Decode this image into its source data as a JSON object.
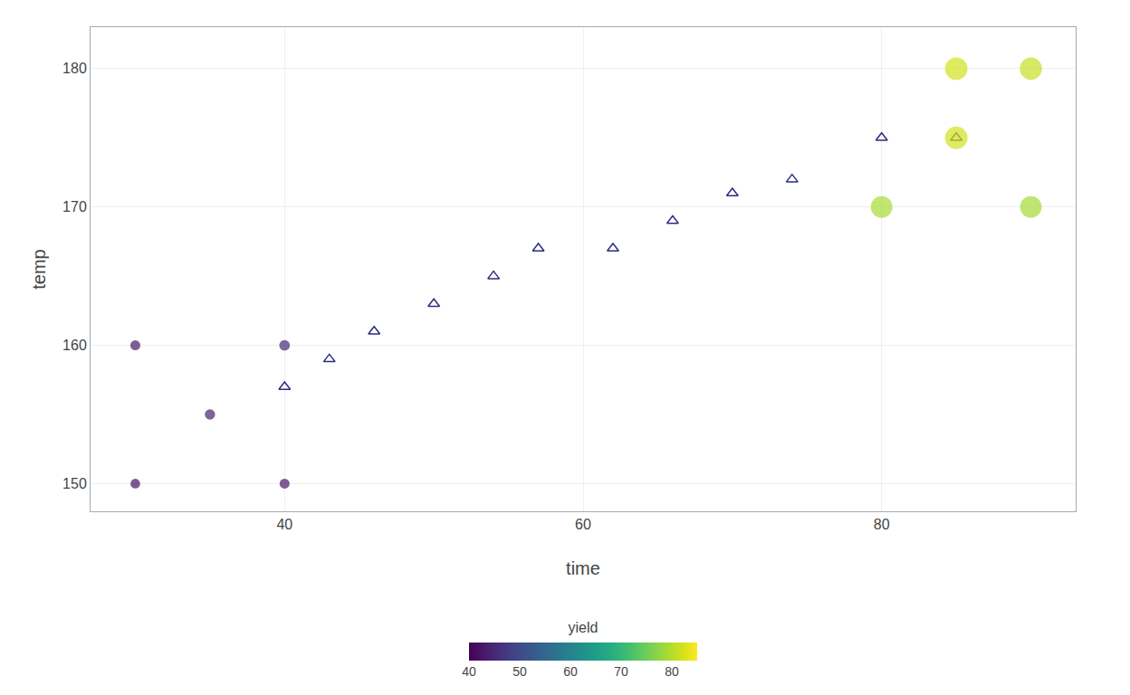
{
  "chart_data": {
    "type": "scatter",
    "xlabel": "time",
    "ylabel": "temp",
    "xlim": [
      27,
      93
    ],
    "ylim": [
      148,
      183
    ],
    "xticks": [
      40,
      60,
      80
    ],
    "yticks": [
      150,
      160,
      170,
      180
    ],
    "grid": true,
    "series": [
      {
        "marker": "circle",
        "color": "viridis",
        "x": [
          30,
          30,
          35,
          40,
          40,
          80,
          85,
          85,
          90,
          90
        ],
        "y": [
          150,
          160,
          155,
          150,
          160,
          170,
          180,
          175,
          170,
          180
        ],
        "yield": [
          42,
          43,
          44,
          43,
          45,
          79,
          82,
          82,
          79,
          81
        ]
      },
      {
        "marker": "triangle-up-open",
        "color": "#2d2d7f",
        "x": [
          40,
          43,
          46,
          50,
          54,
          57,
          62,
          66,
          70,
          74,
          80,
          85
        ],
        "y": [
          157,
          159,
          161,
          163,
          165,
          167,
          167,
          169,
          171,
          172,
          175,
          175
        ]
      }
    ],
    "colorbar": {
      "label": "yield",
      "range": [
        40,
        85
      ],
      "ticks": [
        40,
        50,
        60,
        70,
        80
      ]
    }
  }
}
